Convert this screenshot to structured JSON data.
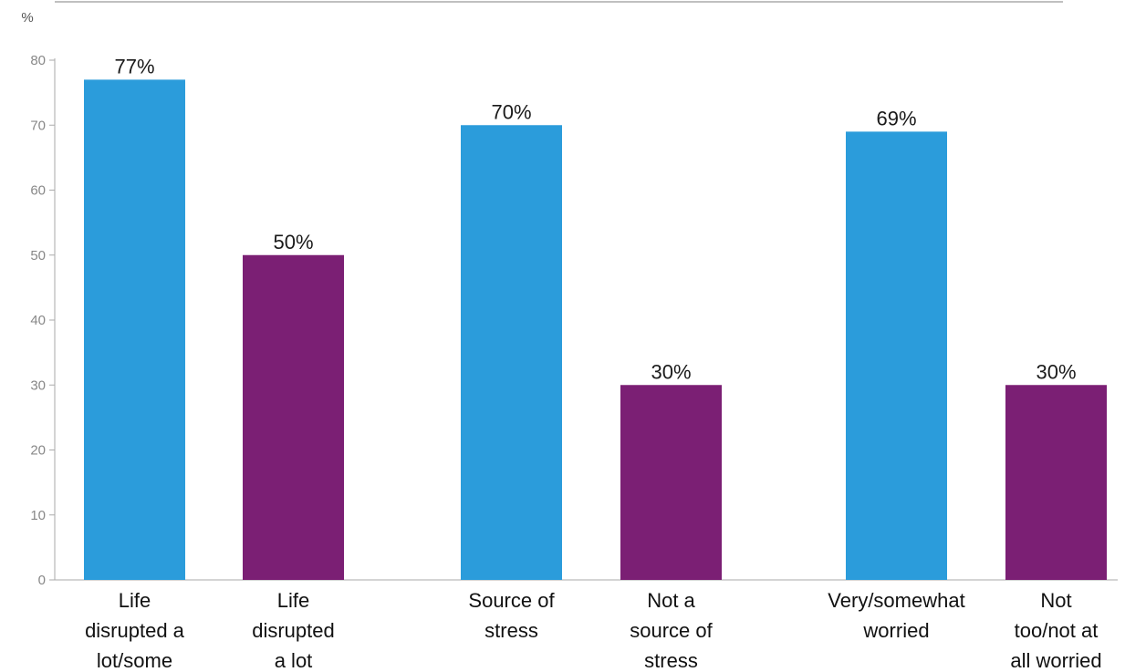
{
  "chart_data": {
    "type": "bar",
    "ylabel": "%",
    "ylim": [
      0,
      80
    ],
    "yticks": [
      0,
      10,
      20,
      30,
      40,
      50,
      60,
      70,
      80
    ],
    "grid": false,
    "bars": [
      {
        "category": [
          "Life",
          "disrupted a",
          "lot/some"
        ],
        "value": 77,
        "label": "77%",
        "color": "#2b9cdb"
      },
      {
        "category": [
          "Life",
          "disrupted",
          "a lot"
        ],
        "value": 50,
        "label": "50%",
        "color": "#7b1f74"
      },
      {
        "category": [
          "Source of",
          "stress"
        ],
        "value": 70,
        "label": "70%",
        "color": "#2b9cdb"
      },
      {
        "category": [
          "Not a",
          "source of",
          "stress"
        ],
        "value": 30,
        "label": "30%",
        "color": "#7b1f74"
      },
      {
        "category": [
          "Very/somewhat",
          "worried"
        ],
        "value": 69,
        "label": "69%",
        "color": "#2b9cdb"
      },
      {
        "category": [
          "Not",
          "too/not at",
          "all worried"
        ],
        "value": 30,
        "label": "30%",
        "color": "#7b1f74"
      }
    ]
  }
}
